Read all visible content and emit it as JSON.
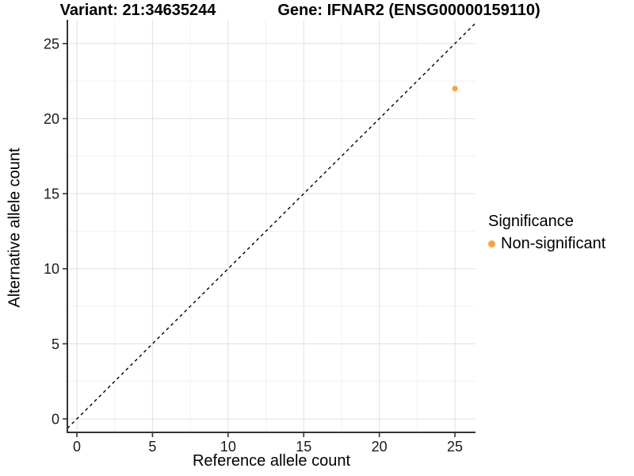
{
  "header": {
    "variant_title": "Variant: 21:34635244",
    "gene_title": "Gene: IFNAR2 (ENSG00000159110)"
  },
  "chart_data": {
    "type": "scatter",
    "xlabel": "Reference allele count",
    "ylabel": "Alternative allele count",
    "xlim": [
      -0.63,
      26.36
    ],
    "ylim": [
      -0.9,
      26.58
    ],
    "x_ticks": [
      0,
      5,
      10,
      15,
      20,
      25
    ],
    "y_ticks": [
      0,
      5,
      10,
      15,
      20,
      25
    ],
    "grid": {
      "show": true,
      "minor_step": 2.5,
      "major_step": 5,
      "major_color": "#e5e5e5",
      "minor_color": "#f1f1f1"
    },
    "axis_color": "#333333",
    "reference_line": {
      "type": "identity",
      "slope": 1,
      "intercept": 0,
      "style": "dashed",
      "color": "#000000"
    },
    "series": [
      {
        "name": "Non-significant",
        "color": "#F9A242",
        "points": [
          {
            "x": 25,
            "y": 22
          }
        ]
      }
    ],
    "legend": {
      "title": "Significance",
      "position": "right",
      "entries": [
        {
          "label": "Non-significant",
          "color": "#F9A242"
        }
      ]
    }
  }
}
